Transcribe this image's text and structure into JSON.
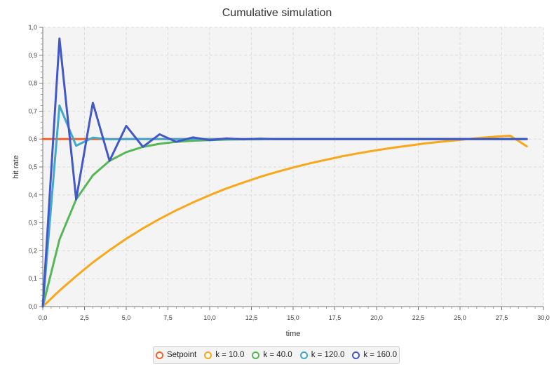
{
  "chart_data": {
    "type": "line",
    "title": "Cumulative simulation",
    "xlabel": "time",
    "ylabel": "hit rate",
    "xlim": [
      0,
      30
    ],
    "ylim": [
      0,
      1
    ],
    "xticks": [
      0,
      2.5,
      5,
      7.5,
      10,
      12.5,
      15,
      17.5,
      20,
      22.5,
      25,
      27.5,
      30
    ],
    "xtick_labels": [
      "0,0",
      "2,5",
      "5,0",
      "7,5",
      "10,0",
      "12,5",
      "15,0",
      "17,5",
      "20,0",
      "22,5",
      "25,0",
      "27,5",
      "30,0"
    ],
    "yticks": [
      0,
      0.1,
      0.2,
      0.3,
      0.4,
      0.5,
      0.6,
      0.7,
      0.8,
      0.9,
      1.0
    ],
    "ytick_labels": [
      "0,0",
      "0,1",
      "0,2",
      "0,3",
      "0,4",
      "0,5",
      "0,6",
      "0,7",
      "0,8",
      "0,9",
      "1,0"
    ],
    "grid": true,
    "legend_position": "bottom",
    "series": [
      {
        "name": "Setpoint",
        "color": "#f3622d",
        "x": [
          0,
          29
        ],
        "y": [
          0.6,
          0.6
        ]
      },
      {
        "name": "k = 10.0",
        "color": "#fba71b",
        "x": [
          0,
          1,
          2,
          3,
          4,
          5,
          6,
          7,
          8,
          9,
          10,
          11,
          12,
          13,
          14,
          15,
          16,
          17,
          18,
          19,
          20,
          21,
          22,
          23,
          24,
          25,
          26,
          27,
          28,
          29
        ],
        "y": [
          0,
          0.057,
          0.109,
          0.158,
          0.202,
          0.243,
          0.28,
          0.314,
          0.345,
          0.373,
          0.399,
          0.423,
          0.444,
          0.464,
          0.482,
          0.498,
          0.513,
          0.526,
          0.539,
          0.55,
          0.56,
          0.569,
          0.577,
          0.585,
          0.591,
          0.597,
          0.603,
          0.608,
          0.612,
          0.574
        ]
      },
      {
        "name": "k = 40.0",
        "color": "#57b757",
        "x": [
          0,
          1,
          2,
          3,
          4,
          5,
          6,
          7,
          8,
          9,
          10,
          11,
          12,
          13,
          14,
          15,
          16,
          17,
          18,
          19,
          20,
          21,
          22,
          23,
          24,
          25,
          26,
          27,
          28,
          29
        ],
        "y": [
          0,
          0.24,
          0.384,
          0.47,
          0.522,
          0.553,
          0.572,
          0.583,
          0.59,
          0.594,
          0.596,
          0.598,
          0.599,
          0.599,
          0.6,
          0.6,
          0.6,
          0.6,
          0.6,
          0.6,
          0.6,
          0.6,
          0.6,
          0.6,
          0.6,
          0.6,
          0.6,
          0.6,
          0.6,
          0.6
        ]
      },
      {
        "name": "k = 120.0",
        "color": "#41a9c9",
        "x": [
          0,
          1,
          2,
          3,
          4,
          5,
          6,
          7,
          8,
          9,
          10,
          11,
          12,
          13,
          14,
          15,
          16,
          17,
          18,
          19,
          20,
          21,
          22,
          23,
          24,
          25,
          26,
          27,
          28,
          29
        ],
        "y": [
          0,
          0.72,
          0.576,
          0.605,
          0.599,
          0.6,
          0.6,
          0.6,
          0.6,
          0.6,
          0.6,
          0.6,
          0.6,
          0.6,
          0.6,
          0.6,
          0.6,
          0.6,
          0.6,
          0.6,
          0.6,
          0.6,
          0.6,
          0.6,
          0.6,
          0.6,
          0.6,
          0.6,
          0.6,
          0.6
        ]
      },
      {
        "name": "k = 160.0",
        "color": "#4258c9",
        "x": [
          0,
          1,
          2,
          3,
          4,
          5,
          6,
          7,
          8,
          9,
          10,
          11,
          12,
          13,
          14,
          15,
          16,
          17,
          18,
          19,
          20,
          21,
          22,
          23,
          24,
          25,
          26,
          27,
          28,
          29
        ],
        "y": [
          0,
          0.96,
          0.384,
          0.73,
          0.522,
          0.647,
          0.572,
          0.617,
          0.59,
          0.606,
          0.596,
          0.602,
          0.599,
          0.601,
          0.6,
          0.6,
          0.6,
          0.6,
          0.6,
          0.6,
          0.6,
          0.6,
          0.6,
          0.6,
          0.6,
          0.6,
          0.6,
          0.6,
          0.6,
          0.6
        ]
      }
    ]
  }
}
